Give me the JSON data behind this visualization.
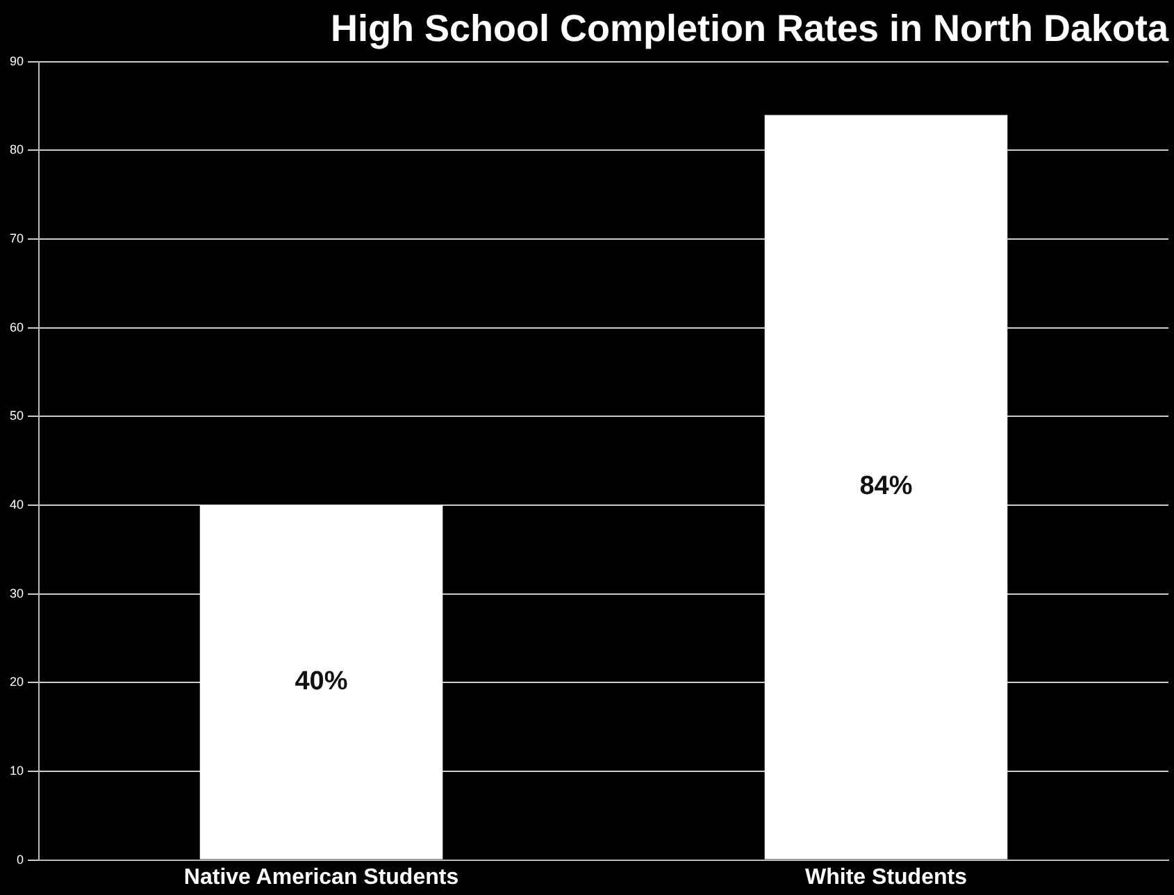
{
  "chart_data": {
    "type": "bar",
    "title": "High School Completion Rates in North Dakota",
    "categories": [
      "Native American Students",
      "White Students"
    ],
    "values": [
      40,
      84
    ],
    "value_labels": [
      "40%",
      "84%"
    ],
    "color": "#ffffff",
    "ylim": [
      0,
      90
    ],
    "yticks": [
      0,
      10,
      20,
      30,
      40,
      50,
      60,
      70,
      80,
      90
    ],
    "grid": "y"
  }
}
